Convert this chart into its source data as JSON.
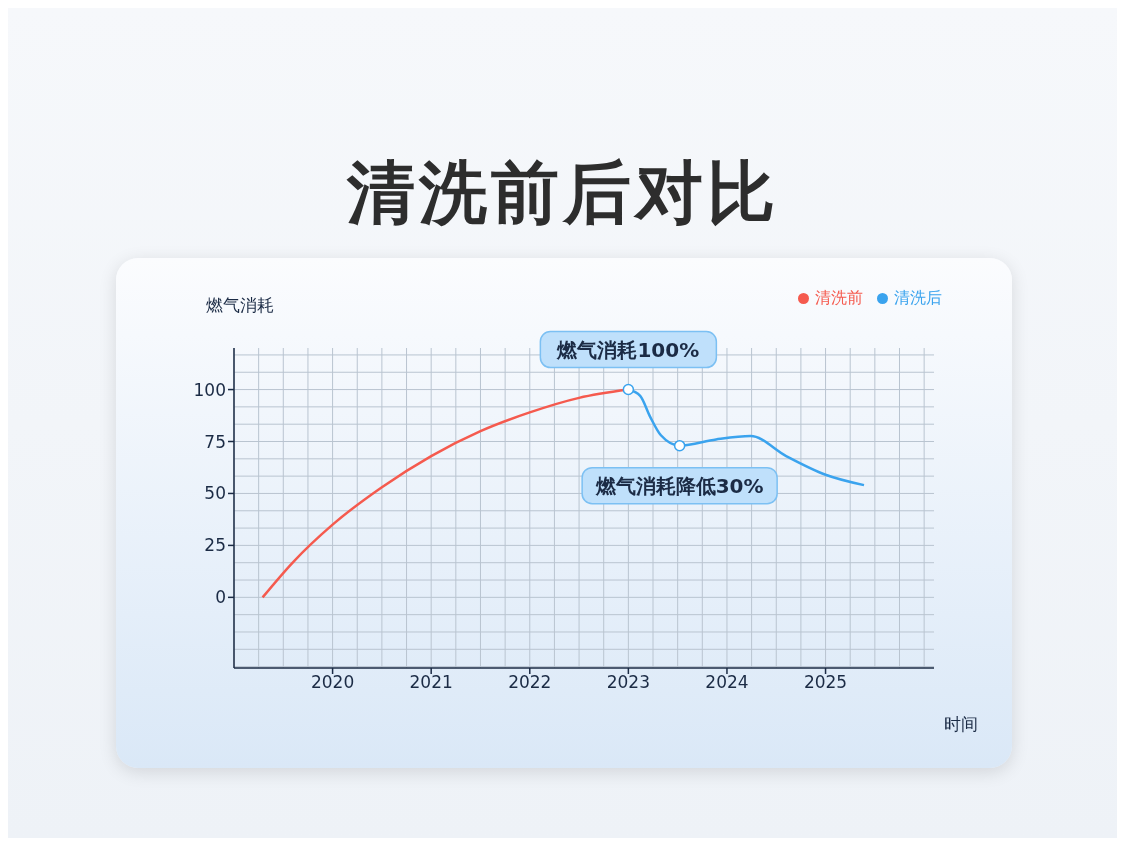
{
  "chart_data": {
    "type": "line",
    "title": "清洗前后对比",
    "xlabel": "时间",
    "ylabel": "燃气消耗",
    "xlim": [
      2019,
      2026.1
    ],
    "xticks": [
      2020,
      2021,
      2022,
      2023,
      2024,
      2025
    ],
    "ylim": [
      -34,
      120
    ],
    "yticks": [
      0,
      25,
      50,
      75,
      100
    ],
    "grid": true,
    "legend": "top right",
    "marker": "none",
    "line_style": "solid",
    "series": [
      {
        "name": "清洗前",
        "color": "#f55a4e",
        "x": [
          2019.29,
          2019.6,
          2020,
          2020.5,
          2021,
          2021.5,
          2022,
          2022.5,
          2023
        ],
        "values": [
          0,
          17,
          35,
          53,
          68,
          80,
          89,
          96,
          100
        ]
      },
      {
        "name": "清洗后",
        "color": "#3aa3ee",
        "x": [
          2023,
          2023.12,
          2023.22,
          2023.33,
          2023.52,
          2023.89,
          2024.24,
          2024.6,
          2025,
          2025.39
        ],
        "values": [
          100,
          97,
          87,
          78,
          73,
          76,
          77.6,
          68,
          59,
          54
        ]
      }
    ],
    "annotations": [
      {
        "text": "燃气消耗100%",
        "x": 2023,
        "y": 100
      },
      {
        "text": "燃气消耗降低30%",
        "x": 2023.52,
        "y": 73
      }
    ]
  }
}
